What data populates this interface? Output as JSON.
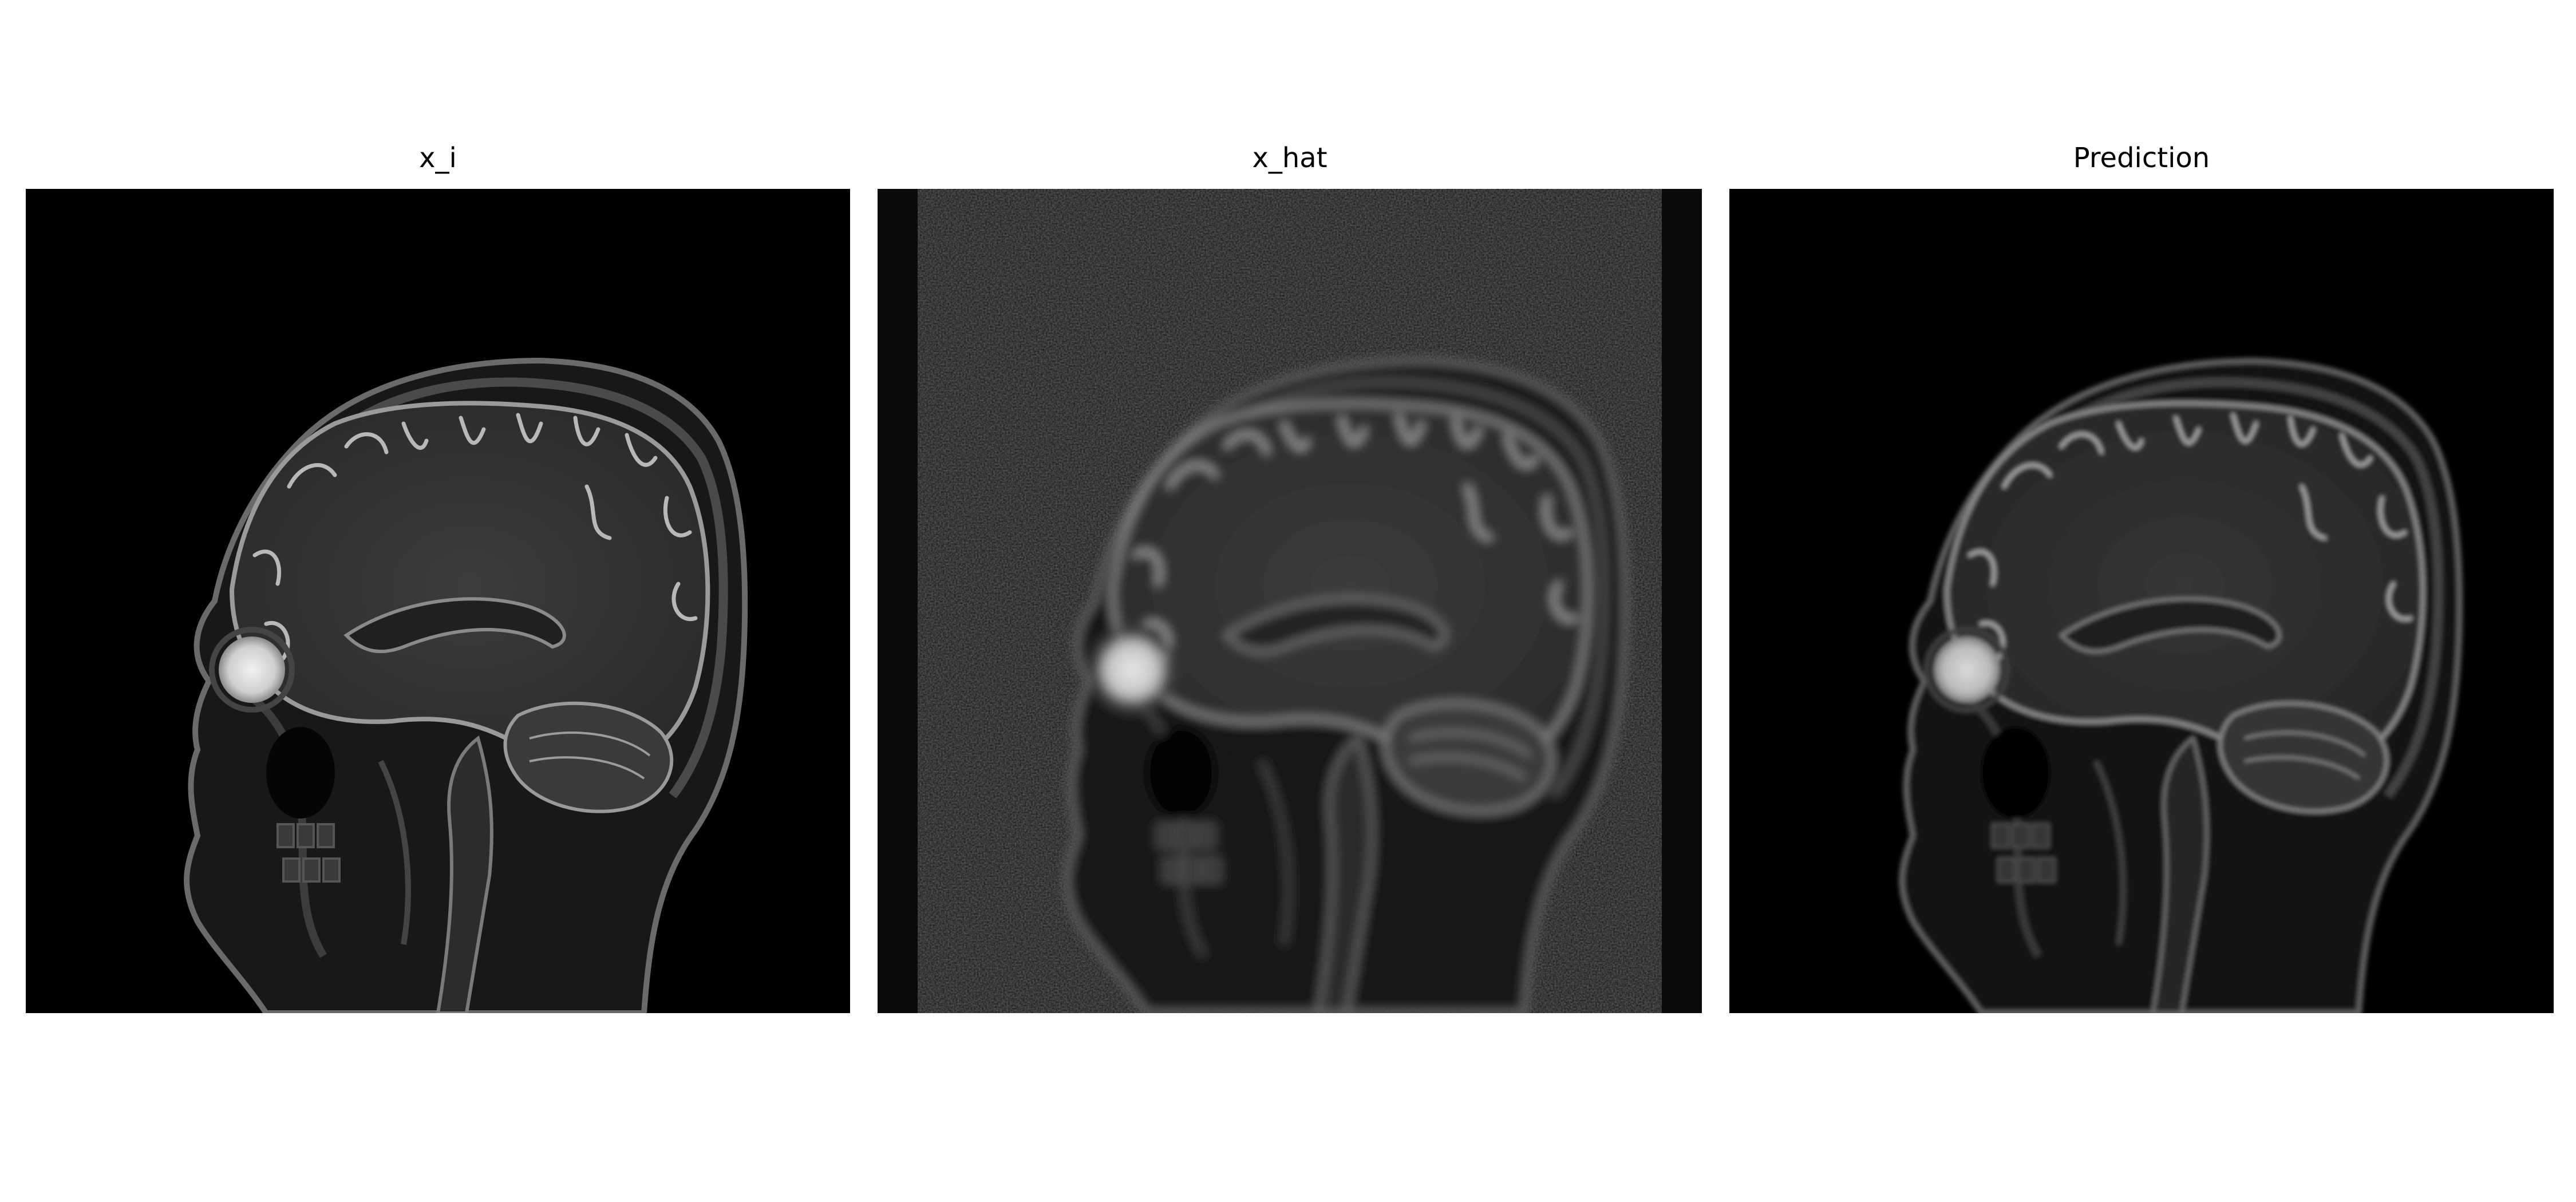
{
  "figure": {
    "panels": [
      {
        "title": "x_i",
        "image": "sagittal-head-mri-sharp"
      },
      {
        "title": "x_hat",
        "image": "sagittal-head-mri-noisy-blurred"
      },
      {
        "title": "Prediction",
        "image": "sagittal-head-mri-reconstructed"
      }
    ]
  }
}
